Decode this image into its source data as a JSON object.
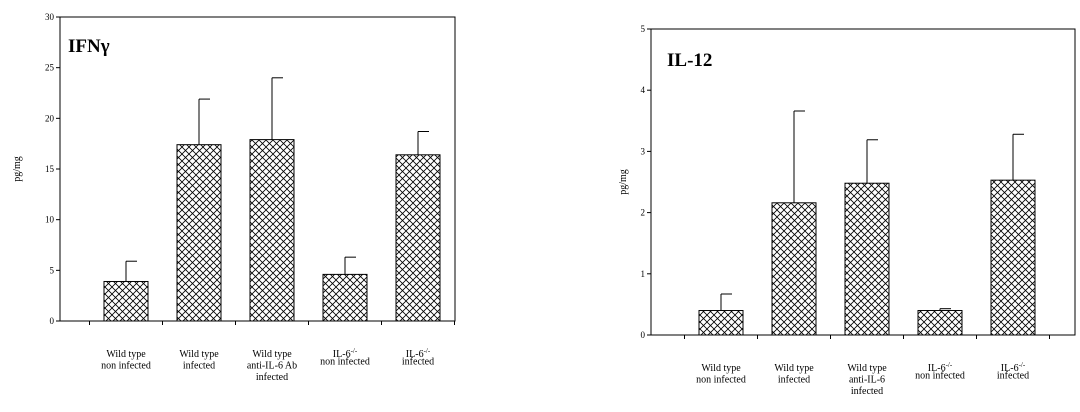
{
  "chart_data": [
    {
      "type": "bar",
      "title": "IFNγ",
      "ylabel": "pg/mg",
      "xlabel": "",
      "ylim": [
        0,
        30
      ],
      "yticks": [
        0,
        5,
        10,
        15,
        20,
        25,
        30
      ],
      "grid": false,
      "legend": "none",
      "bar_fill": "crosshatch",
      "categories": [
        [
          "Wild type",
          "non infected"
        ],
        [
          "Wild type",
          "infected"
        ],
        [
          "Wild type",
          "anti-IL-6 Ab",
          "infected"
        ],
        [
          "IL-6 -/-",
          "non infected"
        ],
        [
          "IL-6 -/-",
          "infected"
        ]
      ],
      "values": [
        3.9,
        17.4,
        17.9,
        4.6,
        16.4
      ],
      "errors": [
        2.0,
        4.5,
        6.1,
        1.7,
        2.3
      ]
    },
    {
      "type": "bar",
      "title": "IL-12",
      "ylabel": "pg/mg",
      "xlabel": "",
      "ylim": [
        0,
        5
      ],
      "yticks": [
        0,
        1,
        2,
        3,
        4,
        5
      ],
      "grid": false,
      "legend": "none",
      "bar_fill": "crosshatch",
      "categories": [
        [
          "Wild type",
          "non infected"
        ],
        [
          "Wild type",
          "infected"
        ],
        [
          "Wild type",
          "anti-IL-6",
          "infected"
        ],
        [
          "IL-6 -/-",
          "non infected"
        ],
        [
          "IL-6 -/-",
          "infected"
        ]
      ],
      "values": [
        0.4,
        2.16,
        2.48,
        0.4,
        2.53
      ],
      "errors": [
        0.27,
        1.5,
        0.71,
        0.03,
        0.75
      ]
    }
  ]
}
